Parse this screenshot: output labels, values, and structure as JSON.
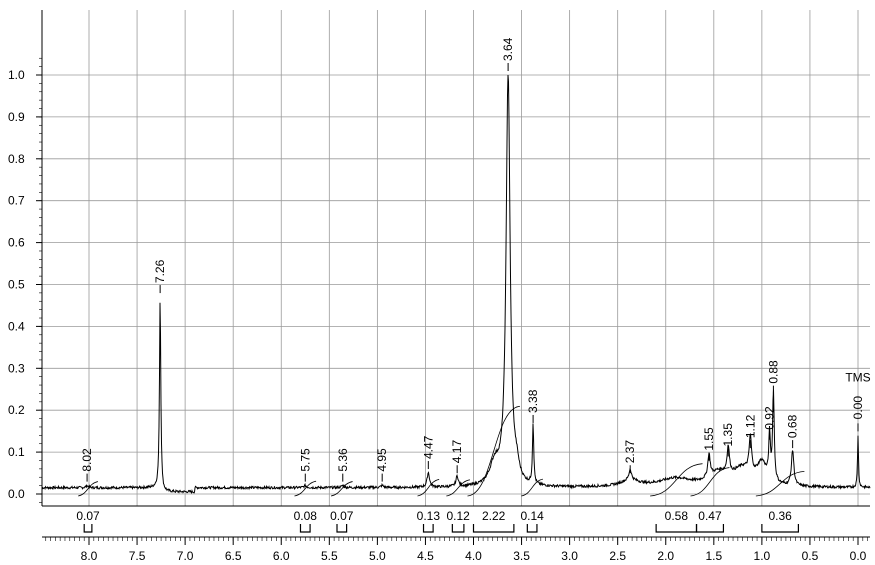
{
  "chart_data": {
    "type": "line",
    "title": "",
    "xlabel": "",
    "ylabel": "",
    "x_reversed": true,
    "xlim": [
      8.5,
      -0.2
    ],
    "ylim": [
      -0.02,
      1.05
    ],
    "grid": true,
    "x_ticks": [
      "8.0",
      "7.5",
      "7.0",
      "6.5",
      "6.0",
      "5.5",
      "5.0",
      "4.5",
      "4.0",
      "3.5",
      "3.0",
      "2.5",
      "2.0",
      "1.5",
      "1.0",
      "0.5",
      "0.0"
    ],
    "y_ticks": [
      "0.0",
      "0.1",
      "0.2",
      "0.3",
      "0.4",
      "0.5",
      "0.6",
      "0.7",
      "0.8",
      "0.9",
      "1.0"
    ],
    "baseline": 0.015,
    "peaks": [
      {
        "label": "8.02",
        "ppm": 8.02,
        "height": 0.02
      },
      {
        "label": "7.26",
        "ppm": 7.26,
        "height": 0.47
      },
      {
        "label": "5.75",
        "ppm": 5.75,
        "height": 0.02
      },
      {
        "label": "5.36",
        "ppm": 5.36,
        "height": 0.02
      },
      {
        "label": "4.95",
        "ppm": 4.95,
        "height": 0.02
      },
      {
        "label": "4.47",
        "ppm": 4.47,
        "height": 0.05
      },
      {
        "label": "4.17",
        "ppm": 4.17,
        "height": 0.04
      },
      {
        "label": "3.64",
        "ppm": 3.64,
        "height": 1.0
      },
      {
        "label": "3.38",
        "ppm": 3.38,
        "height": 0.16
      },
      {
        "label": "2.37",
        "ppm": 2.37,
        "height": 0.04
      },
      {
        "label": "1.55",
        "ppm": 1.55,
        "height": 0.07
      },
      {
        "label": "1.35",
        "ppm": 1.35,
        "height": 0.08
      },
      {
        "label": "1.12",
        "ppm": 1.12,
        "height": 0.1
      },
      {
        "label": "0.92",
        "ppm": 0.92,
        "height": 0.12
      },
      {
        "label": "0.88",
        "ppm": 0.88,
        "height": 0.23
      },
      {
        "label": "0.68",
        "ppm": 0.68,
        "height": 0.1
      },
      {
        "label": "TMS",
        "ppm": 0.0,
        "height": 0.14
      }
    ],
    "tms_shift": "0.00",
    "integrals": [
      {
        "value": "0.07",
        "from": 8.05,
        "to": 7.97
      },
      {
        "value": "0.08",
        "from": 5.8,
        "to": 5.7
      },
      {
        "value": "0.07",
        "from": 5.42,
        "to": 5.32
      },
      {
        "value": "0.13",
        "from": 4.52,
        "to": 4.42
      },
      {
        "value": "0.12",
        "from": 4.22,
        "to": 4.1
      },
      {
        "value": "2.22",
        "from": 4.0,
        "to": 3.58
      },
      {
        "value": "0.14",
        "from": 3.44,
        "to": 3.34
      },
      {
        "value": "0.58",
        "from": 2.1,
        "to": 1.68
      },
      {
        "value": "0.47",
        "from": 1.68,
        "to": 1.4
      },
      {
        "value": "0.36",
        "from": 1.0,
        "to": 0.62
      }
    ]
  }
}
